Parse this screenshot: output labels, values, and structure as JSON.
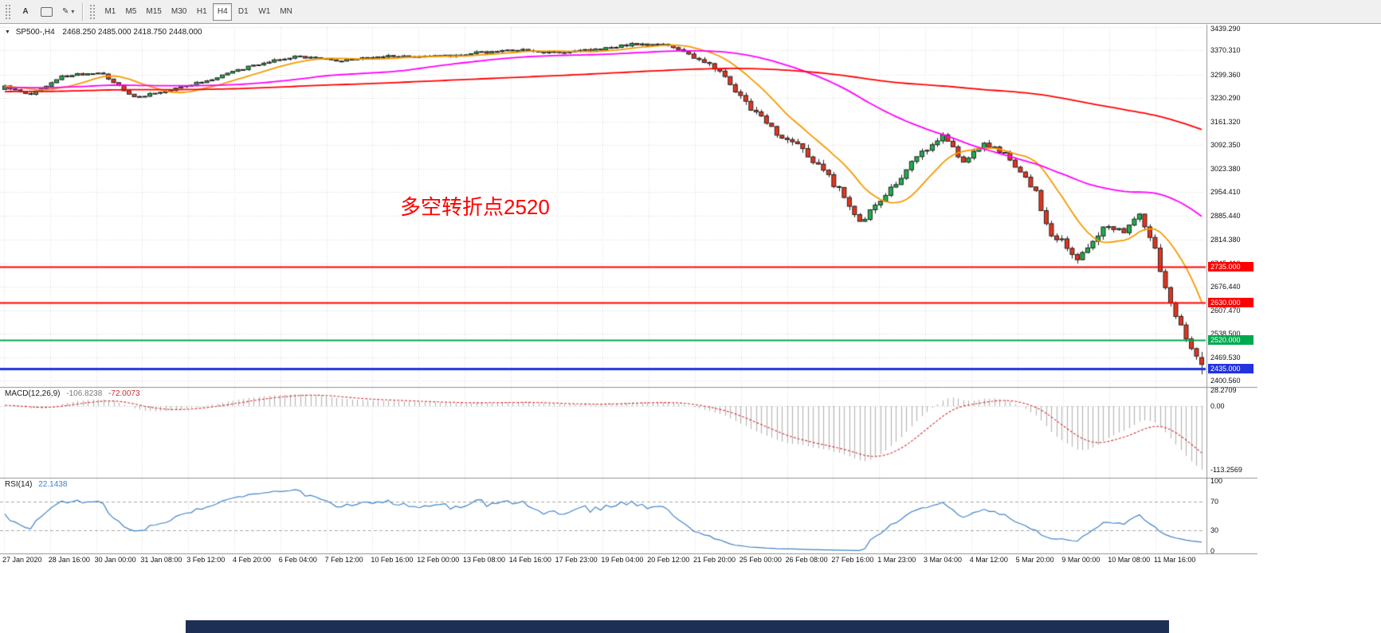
{
  "icons": {
    "pencil": "✎",
    "caret_down": "▾",
    "triangle_down": "▼"
  },
  "toolbar": {
    "text_tool_label": "A",
    "timeframes": [
      {
        "label": "M1",
        "active": false
      },
      {
        "label": "M5",
        "active": false
      },
      {
        "label": "M15",
        "active": false
      },
      {
        "label": "M30",
        "active": false
      },
      {
        "label": "H1",
        "active": false
      },
      {
        "label": "H4",
        "active": true
      },
      {
        "label": "D1",
        "active": false
      },
      {
        "label": "W1",
        "active": false
      },
      {
        "label": "MN",
        "active": false
      }
    ]
  },
  "chart": {
    "symbol": "SP500-,H4",
    "ohlc": "2468.250 2485.000 2418.750 2448.000",
    "annotation": "多空转折点2520",
    "colors": {
      "up": "#1cb24b",
      "down": "#e8341c",
      "ma_fast": "#f59a00",
      "ma_mid": "#ff00ff",
      "ma_slow": "#ff0000",
      "grid": "#d9d9d9",
      "macd_hist": "#b7b7b7",
      "macd_signal": "#d23434",
      "rsi_line": "#3f83c6",
      "annotation": "#ff0000"
    }
  },
  "macd_panel": {
    "label": "MACD(12,26,9)",
    "value_main": "-106.8238",
    "value_signal": "-72.0073"
  },
  "rsi_panel": {
    "label": "RSI(14)",
    "value": "22.1438"
  },
  "chart_data": {
    "type": "candlestick",
    "symbol": "SP500-,H4",
    "timeframe": "H4",
    "grid": true,
    "y_range": [
      2400.56,
      3439.29
    ],
    "y_axis_labels": [
      "3439.290",
      "3370.310",
      "3299.360",
      "3230.290",
      "3161.320",
      "3092.350",
      "3023.380",
      "2954.410",
      "2885.440",
      "2814.380",
      "2745.410",
      "2676.440",
      "2607.470",
      "2538.500",
      "2469.530",
      "2400.560"
    ],
    "x_axis_labels": [
      "27 Jan 2020",
      "28 Jan 16:00",
      "30 Jan 00:00",
      "31 Jan 08:00",
      "3 Feb 12:00",
      "4 Feb 20:00",
      "6 Feb 04:00",
      "7 Feb 12:00",
      "10 Feb 16:00",
      "12 Feb 00:00",
      "13 Feb 08:00",
      "14 Feb 16:00",
      "17 Feb 23:00",
      "19 Feb 04:00",
      "20 Feb 12:00",
      "21 Feb 20:00",
      "25 Feb 00:00",
      "26 Feb 08:00",
      "27 Feb 16:00",
      "1 Mar 23:00",
      "3 Mar 04:00",
      "4 Mar 12:00",
      "5 Mar 20:00",
      "9 Mar 00:00",
      "10 Mar 08:00",
      "11 Mar 16:00"
    ],
    "visible_bars": 232,
    "price_path": [
      [
        0.0,
        3265
      ],
      [
        0.02,
        3238
      ],
      [
        0.048,
        3295
      ],
      [
        0.08,
        3308
      ],
      [
        0.108,
        3232
      ],
      [
        0.135,
        3252
      ],
      [
        0.168,
        3282
      ],
      [
        0.21,
        3330
      ],
      [
        0.24,
        3352
      ],
      [
        0.28,
        3342
      ],
      [
        0.32,
        3356
      ],
      [
        0.36,
        3352
      ],
      [
        0.4,
        3365
      ],
      [
        0.435,
        3372
      ],
      [
        0.465,
        3362
      ],
      [
        0.495,
        3374
      ],
      [
        0.525,
        3390
      ],
      [
        0.552,
        3386
      ],
      [
        0.578,
        3348
      ],
      [
        0.598,
        3305
      ],
      [
        0.618,
        3222
      ],
      [
        0.643,
        3132
      ],
      [
        0.668,
        3075
      ],
      [
        0.693,
        2978
      ],
      [
        0.716,
        2868
      ],
      [
        0.733,
        2930
      ],
      [
        0.758,
        3042
      ],
      [
        0.783,
        3122
      ],
      [
        0.8,
        3045
      ],
      [
        0.818,
        3098
      ],
      [
        0.838,
        3062
      ],
      [
        0.862,
        2955
      ],
      [
        0.872,
        2830
      ],
      [
        0.885,
        2815
      ],
      [
        0.895,
        2745
      ],
      [
        0.905,
        2790
      ],
      [
        0.92,
        2865
      ],
      [
        0.934,
        2835
      ],
      [
        0.948,
        2888
      ],
      [
        0.96,
        2800
      ],
      [
        0.97,
        2660
      ],
      [
        0.982,
        2560
      ],
      [
        0.992,
        2480
      ],
      [
        1.0,
        2448
      ]
    ],
    "volatility_path": [
      [
        0,
        7
      ],
      [
        0.55,
        7
      ],
      [
        0.6,
        17
      ],
      [
        0.7,
        20
      ],
      [
        0.76,
        16
      ],
      [
        0.85,
        14
      ],
      [
        0.89,
        20
      ],
      [
        0.94,
        16
      ],
      [
        1.0,
        22
      ]
    ],
    "last_candle": {
      "open": 2468.25,
      "high": 2485.0,
      "low": 2418.75,
      "close": 2448.0
    },
    "moving_averages": [
      {
        "period": 12,
        "color_key": "ma_fast"
      },
      {
        "period": 55,
        "color_key": "ma_mid"
      },
      {
        "period": 170,
        "color_key": "ma_slow"
      }
    ],
    "horizontal_lines": [
      {
        "price": 2735.0,
        "label": "2735.000",
        "color": "#ff0000",
        "width": 2
      },
      {
        "price": 2630.0,
        "label": "2630.000",
        "color": "#ff0000",
        "width": 2
      },
      {
        "price": 2520.0,
        "label": "2520.000",
        "color": "#00a94f",
        "width": 2
      },
      {
        "price": 2435.0,
        "label": "2435.000",
        "color": "#2333dd",
        "width": 3
      }
    ],
    "macd": {
      "fast": 12,
      "slow": 26,
      "signal": 9,
      "axis_labels": [
        "28.2709",
        "0.00",
        "-113.2569"
      ],
      "range": [
        -113.2569,
        28.2709
      ],
      "current_main": -106.8238,
      "current_signal": -72.0073
    },
    "rsi": {
      "period": 14,
      "axis_labels": [
        "100",
        "70",
        "30",
        "0"
      ],
      "levels": [
        70,
        30
      ],
      "range": [
        0,
        100
      ],
      "current": 22.1438
    }
  }
}
